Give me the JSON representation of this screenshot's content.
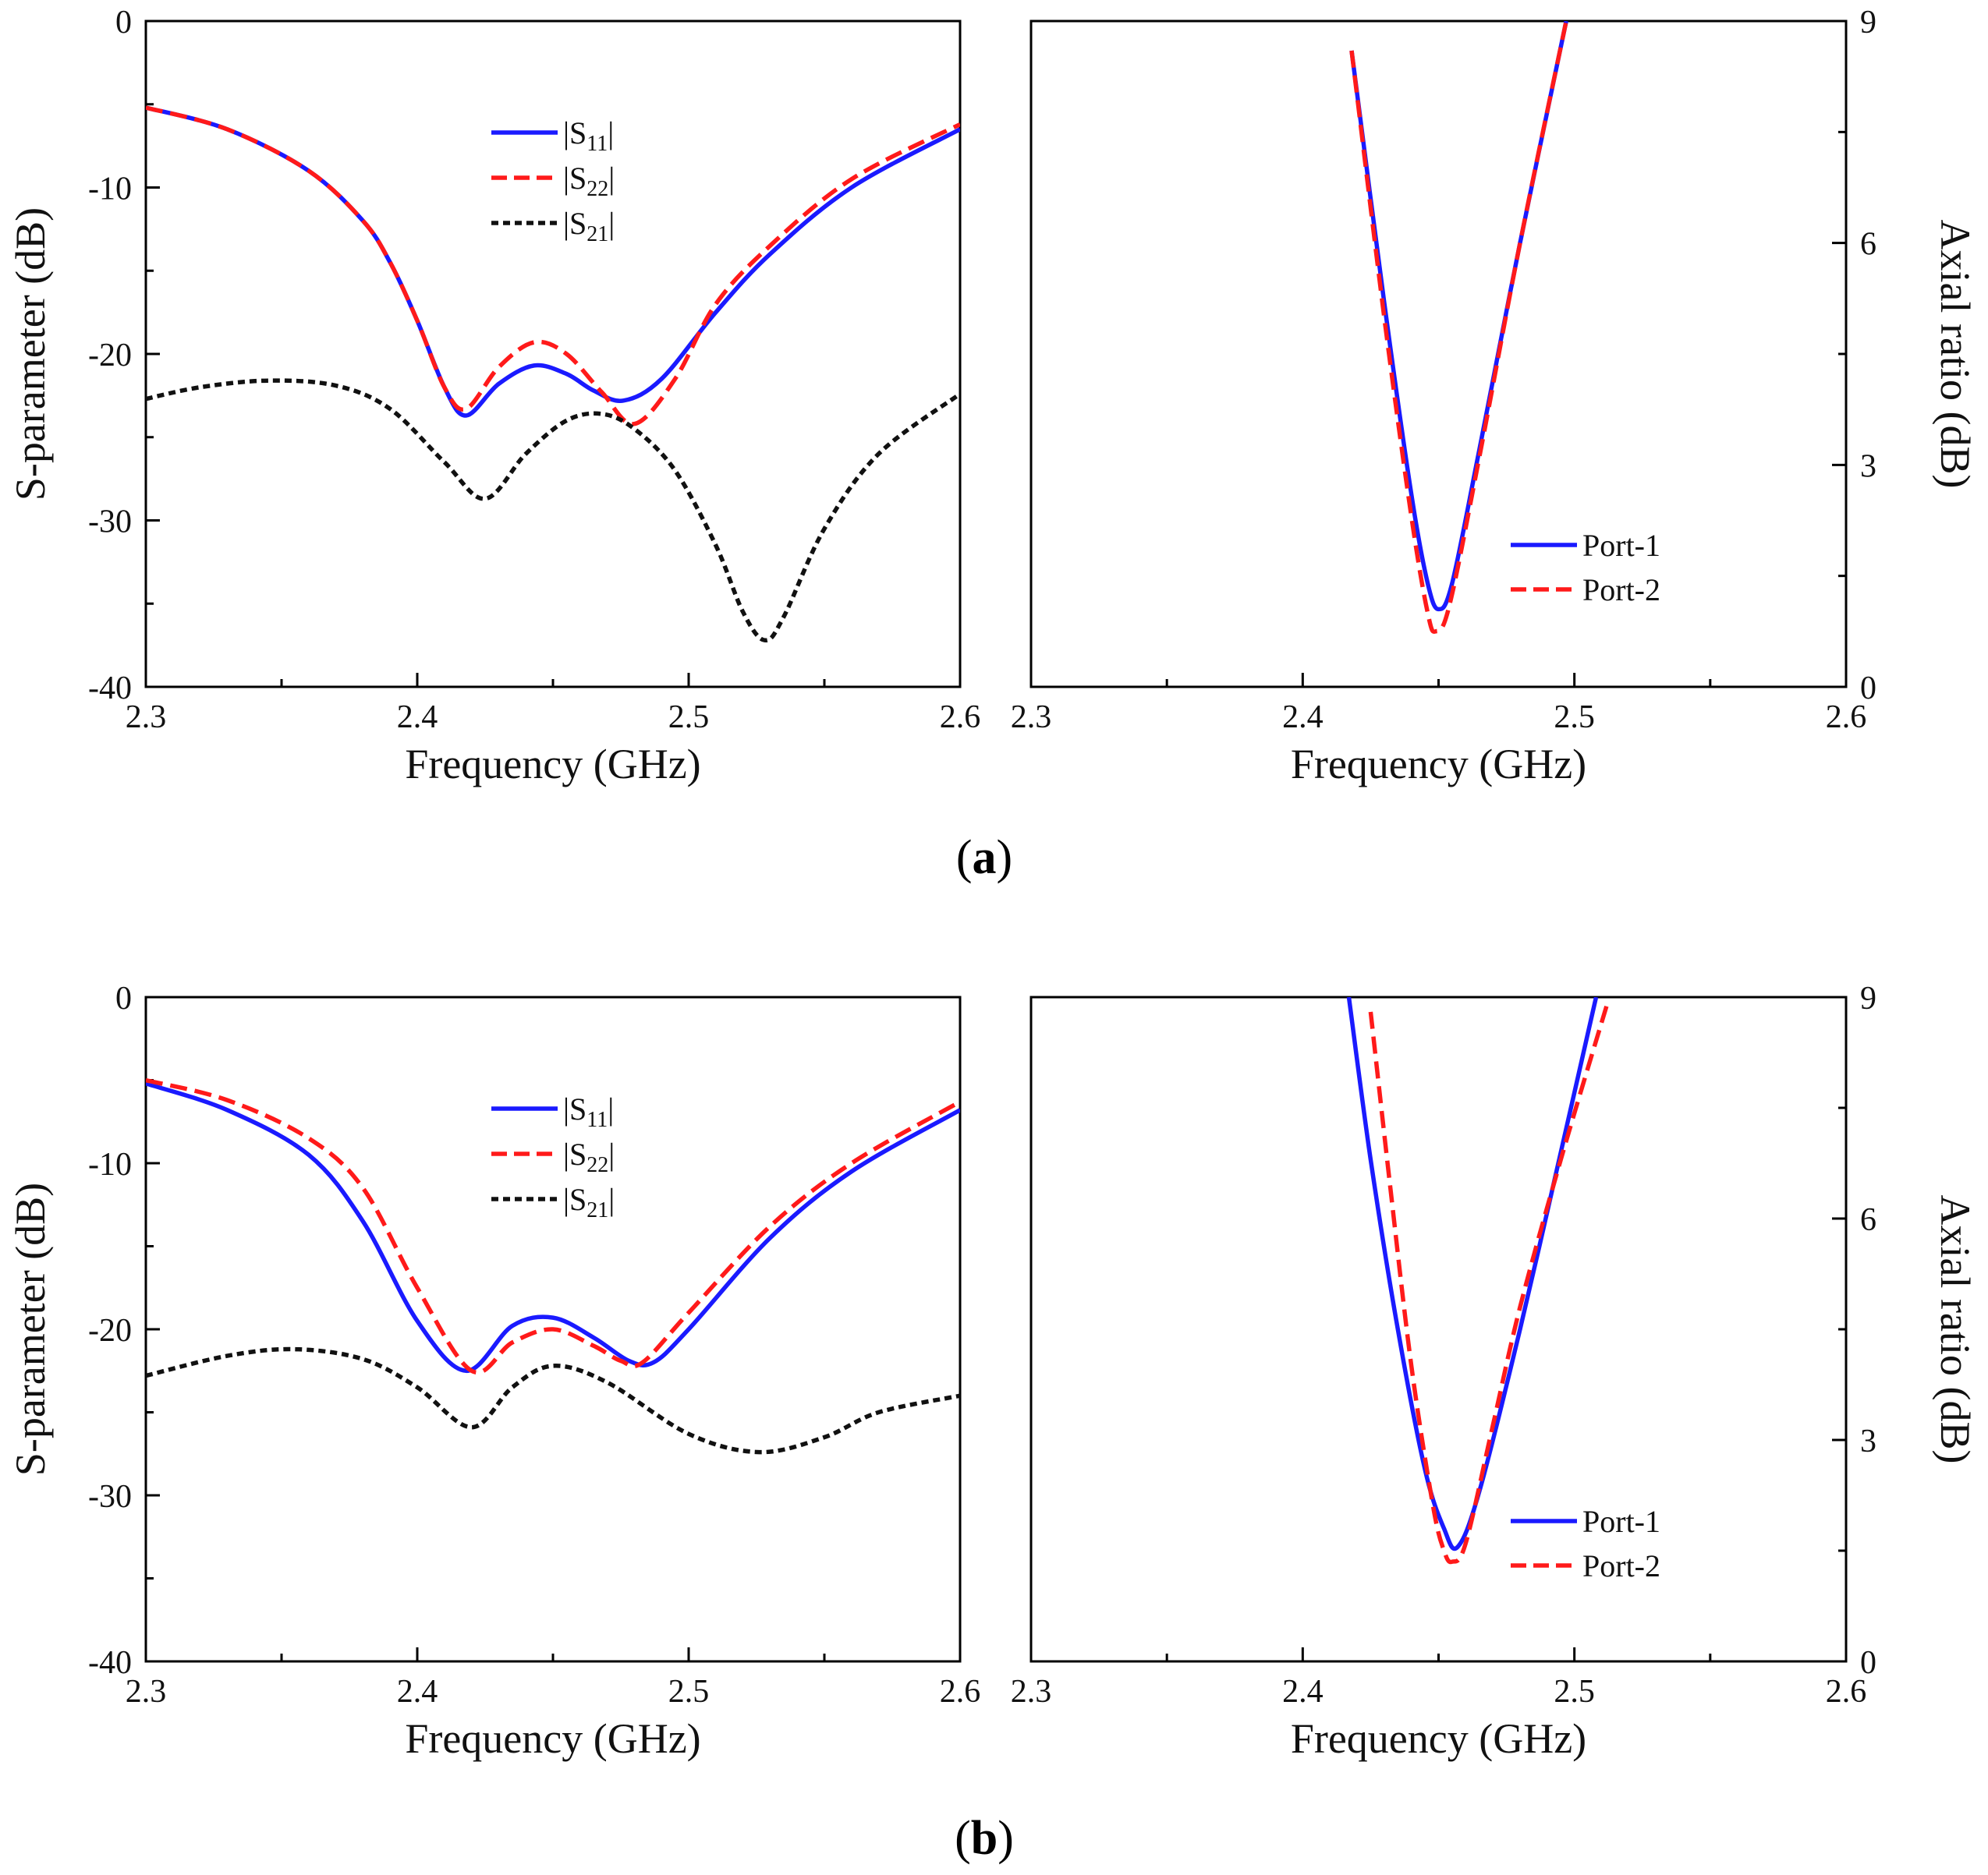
{
  "figure_labels": [
    {
      "open": "(",
      "letter": "a",
      "close": ")"
    },
    {
      "open": "(",
      "letter": "b",
      "close": ")"
    }
  ],
  "chart_data": [
    {
      "type": "line",
      "panel": "a-left",
      "xlabel": "Frequency (GHz)",
      "ylabel": "S-parameter (dB)",
      "xlim": [
        2.3,
        2.6
      ],
      "ylim": [
        -40,
        0
      ],
      "xticks": [
        "2.3",
        "2.4",
        "2.5",
        "2.6"
      ],
      "yticks": [
        "0",
        "-10",
        "-20",
        "-30",
        "-40"
      ],
      "legend_position": "upper-center",
      "series": [
        {
          "name": "|S11|",
          "name_parts": [
            "|S",
            "11",
            "|"
          ],
          "color": "#1a1aff",
          "dash": "solid",
          "x": [
            2.3,
            2.33,
            2.36,
            2.38,
            2.39,
            2.4,
            2.41,
            2.418,
            2.43,
            2.443,
            2.455,
            2.465,
            2.476,
            2.49,
            2.51,
            2.53,
            2.56,
            2.6
          ],
          "y": [
            -5.2,
            -6.5,
            -9.0,
            -12.0,
            -14.5,
            -18.0,
            -22.0,
            -23.7,
            -21.8,
            -20.7,
            -21.2,
            -22.2,
            -22.8,
            -21.5,
            -17.5,
            -14.0,
            -10.0,
            -6.5
          ]
        },
        {
          "name": "|S22|",
          "name_parts": [
            "|S",
            "22",
            "|"
          ],
          "color": "#ff1a1a",
          "dash": "dashed",
          "x": [
            2.3,
            2.33,
            2.36,
            2.38,
            2.39,
            2.4,
            2.41,
            2.418,
            2.43,
            2.443,
            2.455,
            2.468,
            2.48,
            2.495,
            2.51,
            2.53,
            2.56,
            2.6
          ],
          "y": [
            -5.2,
            -6.5,
            -9.0,
            -12.0,
            -14.5,
            -18.0,
            -22.0,
            -23.3,
            -20.8,
            -19.3,
            -20.0,
            -22.3,
            -24.2,
            -21.5,
            -17.0,
            -13.5,
            -9.5,
            -6.2
          ]
        },
        {
          "name": "|S21|",
          "name_parts": [
            "|S",
            "21",
            "|"
          ],
          "color": "#111111",
          "dash": "dotted",
          "x": [
            2.3,
            2.32,
            2.345,
            2.37,
            2.39,
            2.41,
            2.425,
            2.44,
            2.455,
            2.468,
            2.48,
            2.495,
            2.51,
            2.52,
            2.528,
            2.535,
            2.55,
            2.57,
            2.6
          ],
          "y": [
            -22.7,
            -22.0,
            -21.6,
            -21.9,
            -23.3,
            -26.5,
            -28.7,
            -26.0,
            -24.0,
            -23.6,
            -24.5,
            -27.0,
            -31.5,
            -35.5,
            -37.2,
            -35.8,
            -30.5,
            -26.0,
            -22.4
          ]
        }
      ]
    },
    {
      "type": "line",
      "panel": "a-right",
      "xlabel": "Frequency (GHz)",
      "ylabel": "Axial ratio (dB)",
      "xlim": [
        2.3,
        2.6
      ],
      "ylim": [
        0,
        9
      ],
      "xticks": [
        "2.3",
        "2.4",
        "2.5",
        "2.6"
      ],
      "yticks": [
        "9",
        "6",
        "3",
        "0"
      ],
      "legend_position": "lower-right",
      "series": [
        {
          "name": "Port-1",
          "color": "#1a1aff",
          "dash": "solid",
          "x": [
            2.418,
            2.43,
            2.44,
            2.446,
            2.45,
            2.455,
            2.465,
            2.48,
            2.497
          ],
          "y": [
            8.6,
            5.2,
            2.6,
            1.4,
            1.05,
            1.4,
            3.2,
            6.0,
            9.0
          ]
        },
        {
          "name": "Port-2",
          "color": "#ff1a1a",
          "dash": "dashed",
          "x": [
            2.418,
            2.43,
            2.44,
            2.446,
            2.449,
            2.454,
            2.465,
            2.48,
            2.497
          ],
          "y": [
            8.6,
            5.0,
            2.3,
            1.0,
            0.75,
            1.1,
            3.1,
            6.0,
            9.0
          ]
        }
      ]
    },
    {
      "type": "line",
      "panel": "b-left",
      "xlabel": "Frequency (GHz)",
      "ylabel": "S-parameter (dB)",
      "xlim": [
        2.3,
        2.6
      ],
      "ylim": [
        -40,
        0
      ],
      "xticks": [
        "2.3",
        "2.4",
        "2.5",
        "2.6"
      ],
      "yticks": [
        "0",
        "-10",
        "-20",
        "-30",
        "-40"
      ],
      "legend_position": "upper-center",
      "series": [
        {
          "name": "|S11|",
          "name_parts": [
            "|S",
            "11",
            "|"
          ],
          "color": "#1a1aff",
          "dash": "solid",
          "x": [
            2.3,
            2.33,
            2.36,
            2.38,
            2.4,
            2.418,
            2.435,
            2.45,
            2.465,
            2.478,
            2.487,
            2.5,
            2.53,
            2.56,
            2.6
          ],
          "y": [
            -5.2,
            -6.8,
            -9.5,
            -13.5,
            -19.5,
            -22.5,
            -19.8,
            -19.3,
            -20.5,
            -21.9,
            -22.0,
            -20.0,
            -14.5,
            -10.5,
            -6.8
          ]
        },
        {
          "name": "|S22|",
          "name_parts": [
            "|S",
            "22",
            "|"
          ],
          "color": "#ff1a1a",
          "dash": "dashed",
          "x": [
            2.3,
            2.33,
            2.36,
            2.38,
            2.4,
            2.42,
            2.435,
            2.45,
            2.465,
            2.475,
            2.483,
            2.5,
            2.53,
            2.56,
            2.6
          ],
          "y": [
            -5.0,
            -6.2,
            -8.5,
            -11.5,
            -17.5,
            -22.5,
            -20.8,
            -20.0,
            -21.0,
            -21.9,
            -22.0,
            -19.0,
            -13.8,
            -10.0,
            -6.3
          ]
        },
        {
          "name": "|S21|",
          "name_parts": [
            "|S",
            "21",
            "|"
          ],
          "color": "#111111",
          "dash": "dotted",
          "x": [
            2.3,
            2.33,
            2.355,
            2.38,
            2.4,
            2.42,
            2.435,
            2.45,
            2.47,
            2.5,
            2.526,
            2.55,
            2.57,
            2.6
          ],
          "y": [
            -22.8,
            -21.6,
            -21.2,
            -21.8,
            -23.5,
            -25.9,
            -23.5,
            -22.2,
            -23.2,
            -26.3,
            -27.4,
            -26.5,
            -25.0,
            -24.0
          ]
        }
      ]
    },
    {
      "type": "line",
      "panel": "b-right",
      "xlabel": "Frequency (GHz)",
      "ylabel": "Axial ratio (dB)",
      "xlim": [
        2.3,
        2.6
      ],
      "ylim": [
        0,
        9
      ],
      "xticks": [
        "2.3",
        "2.4",
        "2.5",
        "2.6"
      ],
      "yticks": [
        "9",
        "6",
        "3",
        "0"
      ],
      "legend_position": "lower-right",
      "series": [
        {
          "name": "Port-1",
          "color": "#1a1aff",
          "dash": "solid",
          "x": [
            2.417,
            2.425,
            2.435,
            2.445,
            2.452,
            2.457,
            2.465,
            2.48,
            2.495,
            2.508
          ],
          "y": [
            9.0,
            6.8,
            4.5,
            2.6,
            1.8,
            1.55,
            2.3,
            4.5,
            6.9,
            9.0
          ]
        },
        {
          "name": "Port-2",
          "color": "#ff1a1a",
          "dash": "dashed",
          "x": [
            2.425,
            2.432,
            2.44,
            2.448,
            2.452,
            2.455,
            2.46,
            2.47,
            2.48,
            2.495,
            2.512
          ],
          "y": [
            8.8,
            6.5,
            4.0,
            2.1,
            1.5,
            1.35,
            1.6,
            3.2,
            4.8,
            6.8,
            8.9
          ]
        }
      ]
    }
  ]
}
